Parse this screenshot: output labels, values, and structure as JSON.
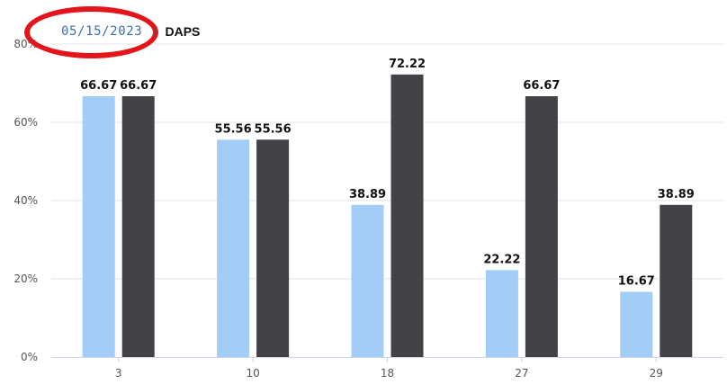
{
  "breadcrumb": {
    "date": "05/15/2023",
    "separator": "/",
    "current": "DAPS"
  },
  "annotation": {
    "shape": "ellipse",
    "color": "#e3151a"
  },
  "chart_data": {
    "type": "bar",
    "categories": [
      "3",
      "10",
      "18",
      "27",
      "29"
    ],
    "series": [
      {
        "color": "#a3ccf7",
        "values": [
          66.67,
          55.56,
          38.89,
          22.22,
          16.67
        ]
      },
      {
        "color": "#434347",
        "values": [
          66.67,
          55.56,
          72.22,
          66.67,
          38.89
        ]
      }
    ],
    "data_labels": true,
    "ylim": [
      0,
      80
    ],
    "yticks": [
      0,
      20,
      40,
      60,
      80
    ],
    "ytick_suffix": "%",
    "grid": true,
    "legend": false
  }
}
